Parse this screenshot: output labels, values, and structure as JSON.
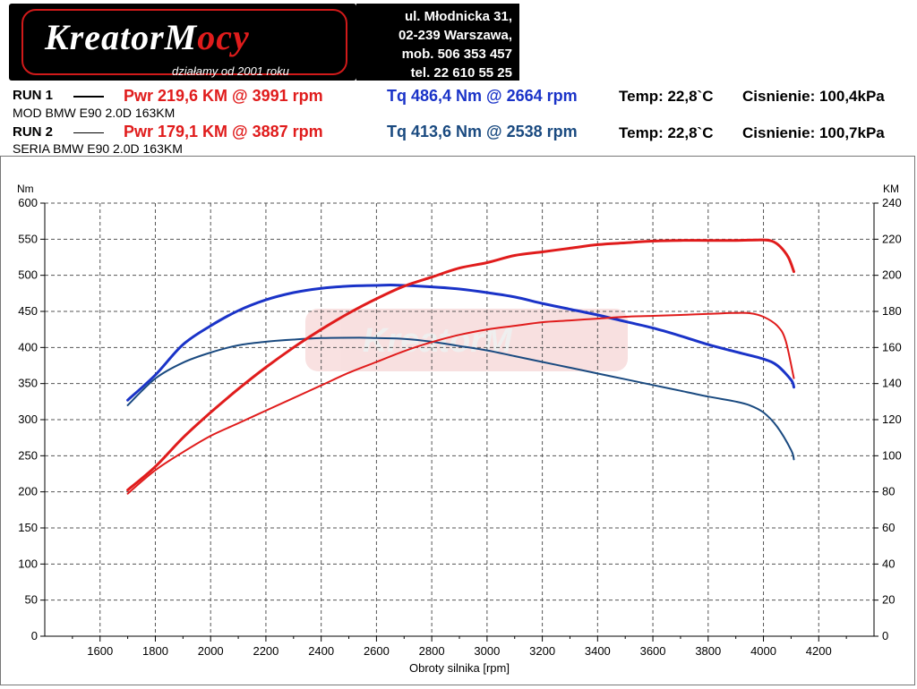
{
  "logo": {
    "word_white": "KreatorM",
    "word_red": "ocy",
    "tagline": "działamy od 2001 roku"
  },
  "contact": [
    "ul. Młodnicka 31,",
    "02-239 Warszawa,",
    "mob. 506 353 457",
    "tel. 22 610 55 25"
  ],
  "runs": [
    {
      "label": "RUN 1",
      "desc": "MOD BMW E90 2.0D 163KM",
      "pwr": "Pwr 219,6 KM @ 3991 rpm",
      "tq": "Tq 486,4 Nm @ 2664 rpm",
      "temp": "Temp: 22,8`C",
      "pressure": "Cisnienie: 100,4kPa"
    },
    {
      "label": "RUN 2",
      "desc": "SERIA BMW E90 2.0D 163KM",
      "pwr": "Pwr 179,1 KM @ 3887 rpm",
      "tq": "Tq 413,6 Nm @ 2538 rpm",
      "temp": "Temp: 22,8`C",
      "pressure": "Cisnienie: 100,7kPa"
    }
  ],
  "colors": {
    "power": "#e01c1c",
    "torque_run1": "#1a33c8",
    "torque_run2": "#1a4a80",
    "grid": "#555555"
  },
  "chart_data": {
    "type": "line",
    "xlabel": "Obroty silnika [rpm]",
    "ylabel_left": "Nm",
    "ylabel_right": "KM",
    "xlim": [
      1400,
      4400
    ],
    "ylim_left": [
      0,
      600
    ],
    "ylim_right": [
      0,
      240
    ],
    "x_ticks": [
      1600,
      1800,
      2000,
      2200,
      2400,
      2600,
      2800,
      3000,
      3200,
      3400,
      3600,
      3800,
      4000,
      4200
    ],
    "y_left_ticks": [
      0,
      50,
      100,
      150,
      200,
      250,
      300,
      350,
      400,
      450,
      500,
      550,
      600
    ],
    "y_right_ticks": [
      0,
      20,
      40,
      60,
      80,
      100,
      120,
      140,
      160,
      180,
      200,
      220,
      240
    ],
    "grid": true,
    "series": [
      {
        "name": "RUN 1",
        "quantity": "torque",
        "axis": "left",
        "color": "torque_run1",
        "width": 3,
        "x": [
          1700,
          1800,
          1900,
          2000,
          2100,
          2200,
          2300,
          2400,
          2500,
          2600,
          2664,
          2800,
          2900,
          3000,
          3100,
          3200,
          3300,
          3400,
          3500,
          3600,
          3700,
          3800,
          3900,
          4000,
          4050,
          4100,
          4110
        ],
        "y": [
          327,
          362,
          404,
          430,
          451,
          466,
          476,
          482,
          485,
          486,
          486.4,
          484,
          481,
          476,
          470,
          461,
          453,
          445,
          436,
          427,
          416,
          404,
          394,
          384,
          375,
          355,
          345
        ]
      },
      {
        "name": "RUN 2",
        "quantity": "torque",
        "axis": "left",
        "color": "torque_run2",
        "width": 2,
        "x": [
          1700,
          1800,
          1900,
          2000,
          2100,
          2200,
          2300,
          2400,
          2538,
          2600,
          2700,
          2800,
          2900,
          3000,
          3100,
          3200,
          3300,
          3400,
          3500,
          3600,
          3700,
          3800,
          3900,
          3950,
          4000,
          4050,
          4100,
          4110
        ],
        "y": [
          320,
          357,
          379,
          393,
          403,
          408,
          411,
          413,
          413.6,
          413,
          412,
          408,
          402,
          396,
          388,
          380,
          372,
          364,
          356,
          348,
          340,
          332,
          325,
          320,
          310,
          290,
          258,
          245
        ]
      },
      {
        "name": "RUN 1",
        "quantity": "power",
        "axis": "right",
        "color": "power",
        "width": 3,
        "x": [
          1700,
          1800,
          1900,
          2000,
          2100,
          2200,
          2300,
          2400,
          2500,
          2600,
          2700,
          2800,
          2900,
          3000,
          3100,
          3200,
          3300,
          3400,
          3500,
          3600,
          3700,
          3800,
          3900,
          3991,
          4030,
          4060,
          4090,
          4110
        ],
        "y": [
          81,
          94,
          110,
          124,
          137,
          149,
          160,
          170,
          179,
          187,
          194,
          199,
          204,
          207,
          211,
          213,
          215,
          217,
          218,
          219,
          219.3,
          219.3,
          219.3,
          219.6,
          219,
          216,
          210,
          202
        ]
      },
      {
        "name": "RUN 2",
        "quantity": "power",
        "axis": "right",
        "color": "power",
        "width": 2,
        "x": [
          1700,
          1800,
          1900,
          2000,
          2100,
          2200,
          2300,
          2400,
          2500,
          2600,
          2700,
          2800,
          2900,
          3000,
          3100,
          3200,
          3300,
          3400,
          3500,
          3600,
          3700,
          3800,
          3887,
          3950,
          4000,
          4050,
          4080,
          4110
        ],
        "y": [
          79,
          92,
          102,
          111,
          118,
          125,
          132,
          139,
          146,
          152,
          158,
          163,
          167,
          170,
          172,
          174,
          175,
          176,
          177,
          177.5,
          178,
          178.6,
          179.1,
          179,
          177,
          172,
          164,
          143
        ]
      }
    ]
  }
}
